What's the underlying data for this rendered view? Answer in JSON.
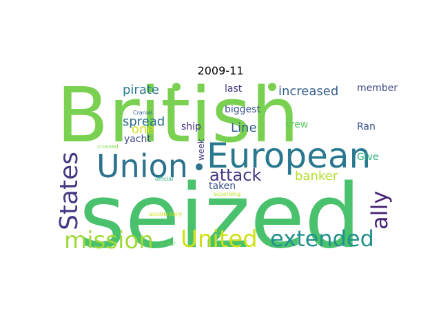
{
  "title": "2009-11",
  "words": [
    {
      "text": "British",
      "color": "#7ad151"
    },
    {
      "text": "seized",
      "color": "#4ac16d"
    },
    {
      "text": "European",
      "color": "#2a788e"
    },
    {
      "text": "Union",
      "color": "#2c728e"
    },
    {
      "text": "States",
      "color": "#443983"
    },
    {
      "text": "ally",
      "color": "#482576"
    },
    {
      "text": "mission",
      "color": "#a0da39"
    },
    {
      "text": "United",
      "color": "#d0e11c"
    },
    {
      "text": "extended",
      "color": "#21918c"
    },
    {
      "text": "attack",
      "color": "#453882"
    },
    {
      "text": "pirate",
      "color": "#2a788e"
    },
    {
      "text": "increased",
      "color": "#355f8d"
    },
    {
      "text": "spread",
      "color": "#2e6f8e"
    },
    {
      "text": "one",
      "color": "#d0e11c"
    },
    {
      "text": "Line",
      "color": "#355f8d"
    },
    {
      "text": "banker",
      "color": "#b5de2b"
    },
    {
      "text": "last",
      "color": "#46337e"
    },
    {
      "text": "biggest",
      "color": "#3b528b"
    },
    {
      "text": "member",
      "color": "#414487"
    },
    {
      "text": "ship",
      "color": "#472d7b"
    },
    {
      "text": "crew",
      "color": "#5ec962"
    },
    {
      "text": "Ran",
      "color": "#3b528b"
    },
    {
      "text": "yacht",
      "color": "#3e4989"
    },
    {
      "text": "week",
      "color": "#443983"
    },
    {
      "text": "Give",
      "color": "#2db27d"
    },
    {
      "text": "taken",
      "color": "#3b528b"
    },
    {
      "text": "Cranial",
      "color": "#355f8d"
    },
    {
      "text": "crossed",
      "color": "#86d549"
    },
    {
      "text": "official",
      "color": "#25ab82"
    },
    {
      "text": "according",
      "color": "#bddf26"
    },
    {
      "text": "accidentally",
      "color": "#d0e11c"
    },
    {
      "text": "water",
      "color": "#5ec962"
    }
  ]
}
